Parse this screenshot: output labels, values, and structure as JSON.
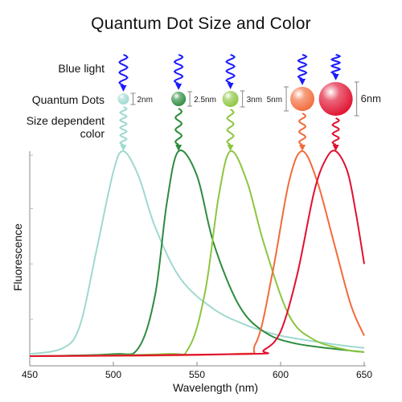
{
  "title": "Quantum Dot Size and Color",
  "row_labels": {
    "excitation": "Blue light",
    "dots": "Quantum Dots",
    "emission_line1": "Size dependent",
    "emission_line2": "color"
  },
  "excitation_color": "#1a1aff",
  "dots": [
    {
      "size_label": "2nm",
      "color": "#9fd9d0",
      "peak_nm": 506
    },
    {
      "size_label": "2.5nm",
      "color": "#2e8b3e",
      "peak_nm": 539
    },
    {
      "size_label": "3nm",
      "color": "#8cc63f",
      "peak_nm": 570
    },
    {
      "size_label": "5nm",
      "color": "#f26b3a",
      "peak_nm": 613
    },
    {
      "size_label": "6nm",
      "color": "#e0102f",
      "peak_nm": 633
    }
  ],
  "chart_data": {
    "type": "line",
    "xlabel": "Wavelength (nm)",
    "ylabel": "Fluorescence",
    "xlim": [
      450,
      650
    ],
    "ylim": [
      0,
      1
    ],
    "x_ticks": [
      "450",
      "500",
      "550",
      "600",
      "650"
    ],
    "series": [
      {
        "color": "#9fd9d0",
        "x": [
          450,
          470,
          480,
          490,
          500,
          506,
          515,
          525,
          540,
          560,
          580,
          600,
          630,
          650
        ],
        "y": [
          0.01,
          0.04,
          0.15,
          0.52,
          0.9,
          1.0,
          0.88,
          0.63,
          0.38,
          0.23,
          0.15,
          0.1,
          0.06,
          0.04
        ]
      },
      {
        "color": "#2e8b3e",
        "x": [
          450,
          500,
          515,
          525,
          532,
          539,
          550,
          560,
          575,
          590,
          610,
          650
        ],
        "y": [
          0.0,
          0.01,
          0.04,
          0.3,
          0.75,
          1.0,
          0.88,
          0.55,
          0.25,
          0.12,
          0.06,
          0.02
        ]
      },
      {
        "color": "#8cc63f",
        "x": [
          450,
          530,
          545,
          555,
          563,
          570,
          580,
          590,
          605,
          620,
          640,
          650
        ],
        "y": [
          0.0,
          0.01,
          0.04,
          0.32,
          0.78,
          1.0,
          0.85,
          0.55,
          0.2,
          0.08,
          0.03,
          0.02
        ]
      },
      {
        "color": "#f26b3a",
        "x": [
          450,
          570,
          585,
          595,
          605,
          613,
          622,
          632,
          642,
          650
        ],
        "y": [
          0.0,
          0.01,
          0.06,
          0.4,
          0.85,
          1.0,
          0.85,
          0.55,
          0.25,
          0.1
        ]
      },
      {
        "color": "#e0102f",
        "x": [
          450,
          580,
          590,
          600,
          610,
          620,
          627,
          633,
          640,
          645,
          650
        ],
        "y": [
          0.0,
          0.01,
          0.03,
          0.12,
          0.4,
          0.8,
          0.96,
          1.0,
          0.9,
          0.7,
          0.45
        ]
      }
    ]
  }
}
